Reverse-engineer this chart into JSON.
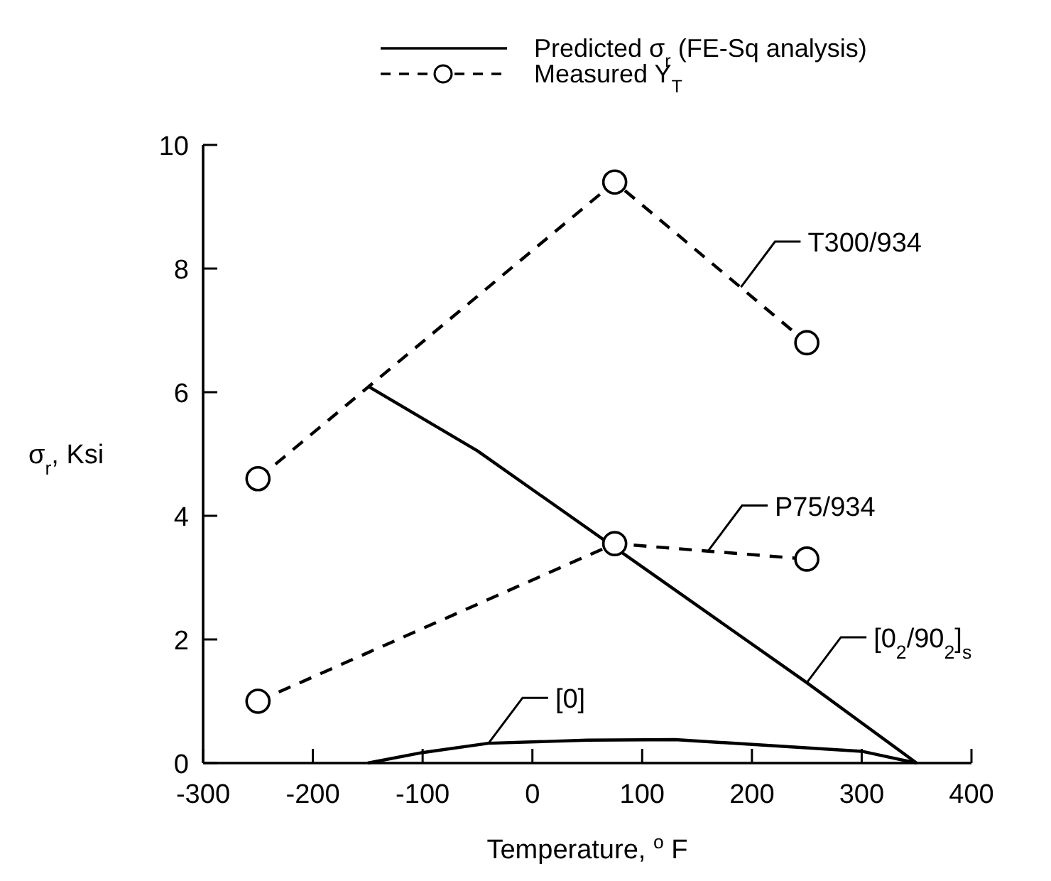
{
  "chart_data": {
    "type": "line",
    "xlabel": "Temperature, $^{o}$ F",
    "ylabel": "σ$_{r}$, Ksi",
    "xlim": [
      -300,
      400
    ],
    "xticks": [
      -300,
      -200,
      -100,
      0,
      100,
      200,
      300,
      400
    ],
    "ylim": [
      0,
      10
    ],
    "yticks": [
      0,
      2,
      4,
      6,
      8,
      10
    ],
    "grid": false,
    "legend": "top",
    "color": "#000000",
    "series": [
      {
        "name": "Predicted σ$_{r}$ (FE-Sq analysis)",
        "color": "#000000",
        "line_style": "solid",
        "marker": "none",
        "x": [
          -150,
          -50,
          250,
          350
        ],
        "values": [
          6.1,
          5.05,
          1.3,
          0
        ]
      },
      {
        "color": "#000000",
        "line_style": "solid",
        "marker": "none",
        "x": [
          -150,
          -100,
          -40,
          50,
          130,
          300,
          350
        ],
        "values": [
          0,
          0.17,
          0.32,
          0.37,
          0.38,
          0.19,
          0
        ]
      },
      {
        "name": "Measured Y$_{T}$",
        "color": "#000000",
        "line_style": "dashed",
        "marker": "circle",
        "x": [
          -250,
          75,
          250
        ],
        "values": [
          4.6,
          9.4,
          6.8
        ]
      },
      {
        "color": "#000000",
        "line_style": "dashed",
        "marker": "circle",
        "x": [
          -250,
          75,
          250
        ],
        "values": [
          1.0,
          3.55,
          3.3
        ]
      }
    ],
    "annotations": [
      {
        "text": "T300/934",
        "x": 190,
        "y": 7.7
      },
      {
        "text": "P75/934",
        "x": 160,
        "y": 3.43
      },
      {
        "text": "[0$_{2}$/90$_{2}$]$_{s}$",
        "x": 250,
        "y": 1.3
      },
      {
        "text": "[0]",
        "x": -40,
        "y": 0.32
      }
    ]
  }
}
